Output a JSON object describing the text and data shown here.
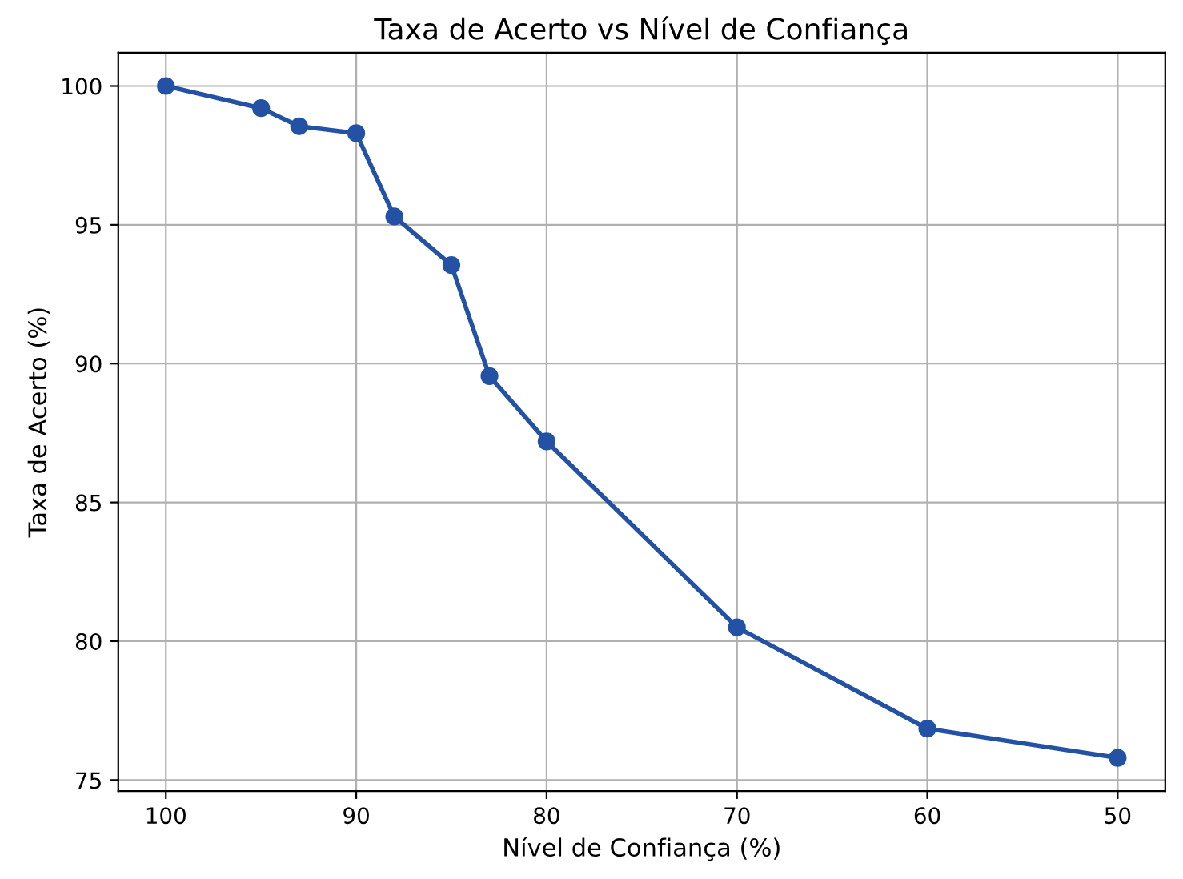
{
  "chart_data": {
    "type": "line",
    "title": "Taxa de Acerto vs Nível de Confiança",
    "xlabel": "Nível de Confiança (%)",
    "ylabel": "Taxa de Acerto (%)",
    "x": [
      100,
      95,
      93,
      90,
      88,
      85,
      83,
      80,
      70,
      60,
      50
    ],
    "series": [
      {
        "color": "#2352a5",
        "values": [
          100,
          99.2,
          98.55,
          98.3,
          95.3,
          93.55,
          89.55,
          87.2,
          80.5,
          76.85,
          75.8
        ]
      }
    ],
    "xlim": [
      102.5,
      47.5
    ],
    "ylim": [
      74.6,
      101.2
    ],
    "xticks": [
      100,
      90,
      80,
      70,
      60,
      50
    ],
    "yticks": [
      75,
      80,
      85,
      90,
      95,
      100
    ],
    "grid": true,
    "marker": "circle",
    "line_style": "solid"
  }
}
